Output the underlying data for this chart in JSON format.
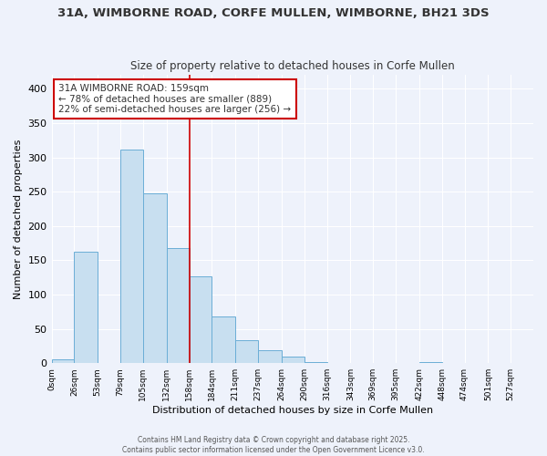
{
  "title1": "31A, WIMBORNE ROAD, CORFE MULLEN, WIMBORNE, BH21 3DS",
  "title2": "Size of property relative to detached houses in Corfe Mullen",
  "xlabel": "Distribution of detached houses by size in Corfe Mullen",
  "ylabel": "Number of detached properties",
  "bin_labels": [
    "0sqm",
    "26sqm",
    "53sqm",
    "79sqm",
    "105sqm",
    "132sqm",
    "158sqm",
    "184sqm",
    "211sqm",
    "237sqm",
    "264sqm",
    "290sqm",
    "316sqm",
    "343sqm",
    "369sqm",
    "395sqm",
    "422sqm",
    "448sqm",
    "474sqm",
    "501sqm",
    "527sqm"
  ],
  "bin_edges": [
    0,
    26,
    53,
    79,
    105,
    132,
    158,
    184,
    211,
    237,
    264,
    290,
    316,
    343,
    369,
    395,
    422,
    448,
    474,
    501,
    527,
    553
  ],
  "bar_heights": [
    5,
    163,
    0,
    311,
    248,
    168,
    126,
    68,
    34,
    19,
    10,
    2,
    0,
    0,
    0,
    0,
    1,
    0,
    0,
    0,
    0
  ],
  "bar_color": "#c8dff0",
  "bar_edge_color": "#6baed6",
  "property_line_x": 158,
  "property_line_color": "#cc0000",
  "annotation_line1": "31A WIMBORNE ROAD: 159sqm",
  "annotation_line2": "← 78% of detached houses are smaller (889)",
  "annotation_line3": "22% of semi-detached houses are larger (256) →",
  "annotation_box_color": "#ffffff",
  "annotation_box_edge": "#cc0000",
  "ylim": [
    0,
    420
  ],
  "yticks": [
    0,
    50,
    100,
    150,
    200,
    250,
    300,
    350,
    400
  ],
  "footer1": "Contains HM Land Registry data © Crown copyright and database right 2025.",
  "footer2": "Contains public sector information licensed under the Open Government Licence v3.0.",
  "bg_color": "#eef2fb",
  "grid_color": "#ffffff",
  "font_color": "#333333"
}
